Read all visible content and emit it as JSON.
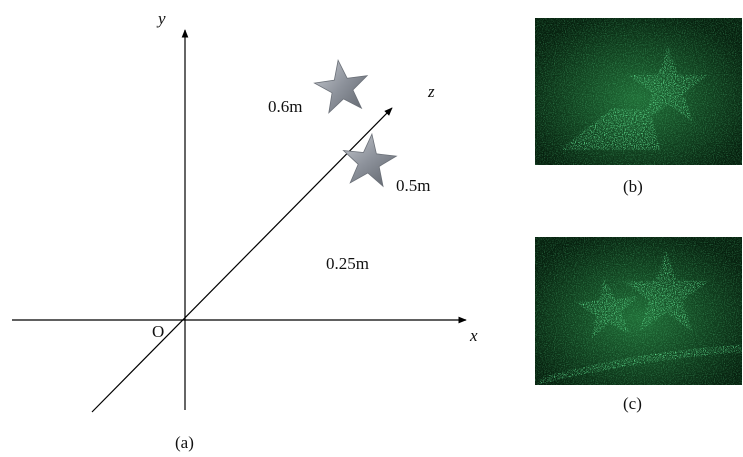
{
  "axes": {
    "y": "y",
    "z": "z",
    "x": "x",
    "origin": "O"
  },
  "distances": [
    "0.6m",
    "0.5m",
    "0.25m"
  ],
  "captions": [
    "(a)",
    "(b)",
    "(c)"
  ]
}
